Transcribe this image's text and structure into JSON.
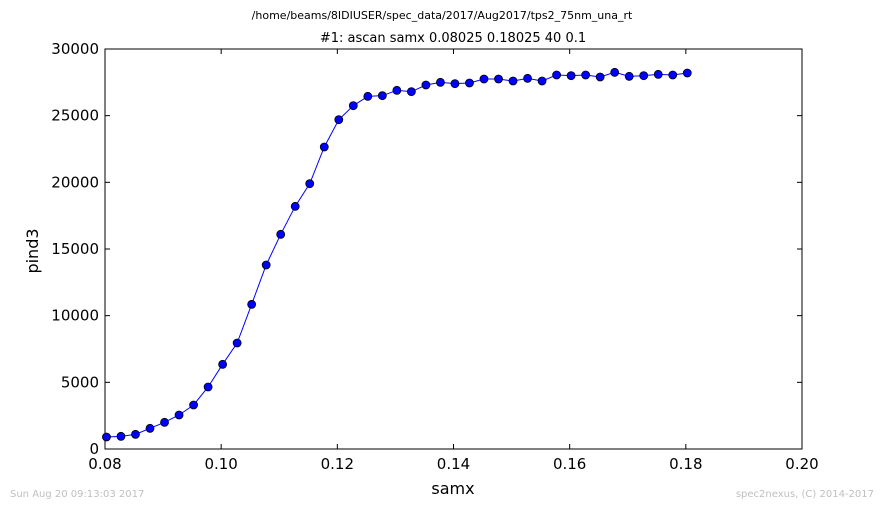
{
  "header": {
    "path": "/home/beams/8IDIUSER/spec_data/2017/Aug2017/tps2_75nm_una_rt",
    "title": "#1: ascan  samx 0.08025 0.18025  40 0.1"
  },
  "footer": {
    "timestamp": "Sun Aug 20 09:13:03 2017",
    "credit": "spec2nexus, (C) 2014-2017"
  },
  "chart_data": {
    "type": "line",
    "title": "#1: ascan  samx 0.08025 0.18025  40 0.1",
    "xlabel": "samx",
    "ylabel": "pind3",
    "xlim": [
      0.08,
      0.2
    ],
    "ylim": [
      0,
      30000
    ],
    "xticks": [
      "0.08",
      "0.10",
      "0.12",
      "0.14",
      "0.16",
      "0.18",
      "0.20"
    ],
    "yticks": [
      "0",
      "5000",
      "10000",
      "15000",
      "20000",
      "25000",
      "30000"
    ],
    "grid": false,
    "series": [
      {
        "color": "#0000ff",
        "marker": "circle",
        "x": [
          0.08025,
          0.08275,
          0.08525,
          0.08775,
          0.09025,
          0.09275,
          0.09525,
          0.09775,
          0.10025,
          0.10275,
          0.10525,
          0.10775,
          0.11025,
          0.11275,
          0.11525,
          0.11775,
          0.12025,
          0.12275,
          0.12525,
          0.12775,
          0.13025,
          0.13275,
          0.13525,
          0.13775,
          0.14025,
          0.14275,
          0.14525,
          0.14775,
          0.15025,
          0.15275,
          0.15525,
          0.15775,
          0.16025,
          0.16275,
          0.16525,
          0.16775,
          0.17025,
          0.17275,
          0.17525,
          0.17775,
          0.18025
        ],
        "y": [
          900,
          950,
          1100,
          1550,
          2000,
          2550,
          3300,
          4650,
          6350,
          7950,
          10850,
          13800,
          16100,
          18200,
          19900,
          22650,
          24700,
          25750,
          26450,
          26500,
          26900,
          26800,
          27300,
          27500,
          27400,
          27450,
          27750,
          27750,
          27600,
          27800,
          27600,
          28050,
          28000,
          28050,
          27900,
          28250,
          27950,
          28000,
          28100,
          28050,
          28200
        ]
      }
    ]
  }
}
